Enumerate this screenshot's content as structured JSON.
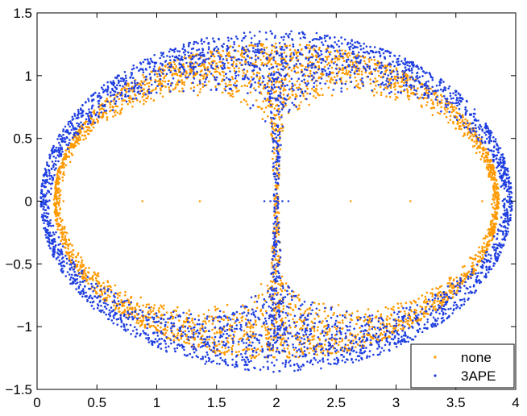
{
  "chart_data": {
    "type": "scatter",
    "title": "",
    "xlabel": "",
    "ylabel": "",
    "xlim": [
      0,
      4
    ],
    "ylim": [
      -1.5,
      1.5
    ],
    "x_ticks": [
      0,
      0.5,
      1,
      1.5,
      2,
      2.5,
      3,
      3.5,
      4
    ],
    "x_tick_labels": [
      "0",
      "0.5",
      "1",
      "1.5",
      "2",
      "2.5",
      "3",
      "3.5",
      "4"
    ],
    "y_ticks": [
      -1.5,
      -1,
      -0.5,
      0,
      0.5,
      1,
      1.5
    ],
    "y_tick_labels": [
      "−1.5",
      "−1",
      "−0.5",
      "0",
      "0.5",
      "1",
      "1.5"
    ],
    "grid": false,
    "legend_position": "bottom-right",
    "series": [
      {
        "name": "none",
        "color": "#ff9900",
        "shape": "ring of points between an inner figure-eight boundary and an outer ellipse",
        "outer_ellipse": {
          "center": [
            2,
            0
          ],
          "semi_axis_x": 1.86,
          "semi_axis_y": 1.26
        },
        "inner_boundary": {
          "center": [
            2,
            0
          ],
          "semi_axis_x": 1.8,
          "lobe_semi_axis_x": 0.9,
          "semi_axis_y": 1.08
        },
        "approx_points": 3200,
        "axis_points_y0": [
          0.22,
          0.88,
          1.36,
          2.62,
          3.12,
          3.72
        ]
      },
      {
        "name": "3APE",
        "color": "#1f3fe0",
        "shape": "ring of points between an inner figure-eight boundary and an outer ellipse, extending further out than 'none'",
        "outer_ellipse": {
          "center": [
            2,
            0
          ],
          "semi_axis_x": 1.97,
          "semi_axis_y": 1.36
        },
        "inner_boundary": {
          "center": [
            2,
            0
          ],
          "semi_axis_x": 1.88,
          "lobe_semi_axis_x": 0.94,
          "semi_axis_y": 1.12
        },
        "approx_points": 3200,
        "axis_points_y0": [
          0.05,
          1.9,
          1.95,
          2.0,
          2.05,
          2.1,
          3.95
        ]
      }
    ]
  }
}
